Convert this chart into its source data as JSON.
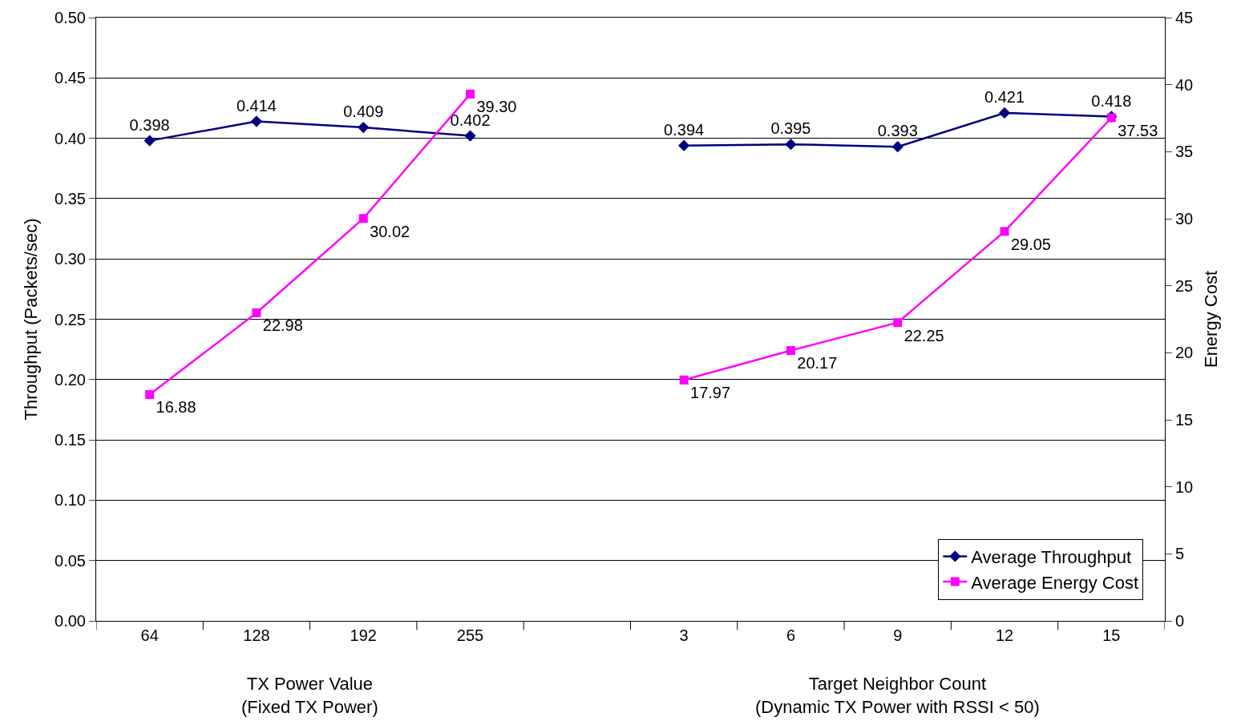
{
  "chart_data": {
    "type": "line",
    "categories": [
      "64",
      "128",
      "192",
      "255",
      null,
      "3",
      "6",
      "9",
      "12",
      "15"
    ],
    "series": [
      {
        "name": "Average Throughput",
        "color": "#000080",
        "marker": "diamond",
        "values": [
          0.398,
          0.414,
          0.409,
          0.402,
          null,
          0.394,
          0.395,
          0.393,
          0.421,
          0.418
        ],
        "value_labels": [
          "0.398",
          "0.414",
          "0.409",
          "0.402",
          null,
          "0.394",
          "0.395",
          "0.393",
          "0.421",
          "0.418"
        ]
      },
      {
        "name": "Average Energy Cost",
        "color": "#ff00ff",
        "marker": "square",
        "axis": "y2",
        "values": [
          16.88,
          22.98,
          30.02,
          39.3,
          null,
          17.97,
          20.17,
          22.25,
          29.05,
          37.53
        ],
        "value_labels": [
          "16.88",
          "22.98",
          "30.02",
          "39.30",
          null,
          "17.97",
          "20.17",
          "22.25",
          "29.05",
          "37.53"
        ]
      }
    ],
    "ylabel": "Throughput (Packets/sec)",
    "y2label": "Energy Cost",
    "ylim": [
      0,
      0.5
    ],
    "yticks": [
      {
        "value": 0,
        "label": "0.00"
      },
      {
        "value": 0.05,
        "label": "0.05"
      },
      {
        "value": 0.1,
        "label": "0.10"
      },
      {
        "value": 0.15,
        "label": "0.15"
      },
      {
        "value": 0.2,
        "label": "0.20"
      },
      {
        "value": 0.25,
        "label": "0.25"
      },
      {
        "value": 0.3,
        "label": "0.30"
      },
      {
        "value": 0.35,
        "label": "0.35"
      },
      {
        "value": 0.4,
        "label": "0.40"
      },
      {
        "value": 0.45,
        "label": "0.45"
      },
      {
        "value": 0.5,
        "label": "0.50"
      }
    ],
    "y2lim": [
      0,
      45
    ],
    "y2ticks": [
      0,
      5,
      10,
      15,
      20,
      25,
      30,
      35,
      40,
      45
    ],
    "annotations": [
      "TX Power Value\n(Fixed TX Power)",
      "Target Neighbor Count\n(Dynamic TX Power with RSSI < 50)"
    ],
    "grid": "y",
    "legend": "bottom right"
  }
}
